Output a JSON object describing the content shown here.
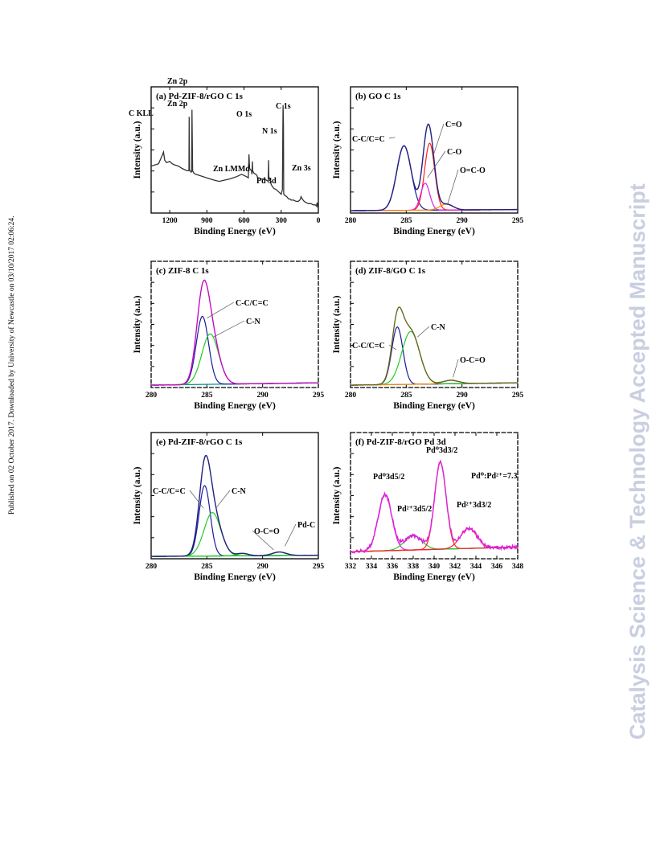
{
  "side_text": {
    "left": "Published on 02 October 2017. Downloaded by University of Newcastle on 03/10/2017 02:06:24.",
    "right": "Catalysis Science & Technology Accepted Manuscript"
  },
  "colors": {
    "axis": "#000000",
    "envelope_pink": "#ff00ff",
    "fit_blue": "#1a1aa0",
    "fit_green": "#22cc22",
    "fit_red": "#ff2020",
    "fit_magenta": "#dd22dd",
    "fit_orange": "#ff8800",
    "baseline": "#009090",
    "raw_dark": "#333333",
    "olive": "#808020",
    "watermark": "#c9cfe0"
  },
  "chart_data": [
    {
      "id": "a",
      "type": "line",
      "title": "(a) Pd-ZIF-8/rGO C 1s",
      "xlabel": "Binding Energy (eV)",
      "ylabel": "Intensity (a.u.)",
      "xlim": [
        1350,
        0
      ],
      "ylim": [
        0,
        100
      ],
      "reversed_x": true,
      "xticks": [
        1200,
        900,
        600,
        300,
        0
      ],
      "series": [
        {
          "color": "raw_dark",
          "x": [
            1350,
            1290,
            1265,
            1250,
            1240,
            1225,
            1200,
            1180,
            1160,
            1130,
            1100,
            1080,
            1060,
            1045,
            1043,
            1040,
            1030,
            1022,
            1020,
            1015,
            1005,
            990,
            960,
            930,
            900,
            870,
            840,
            800,
            760,
            720,
            690,
            660,
            640,
            620,
            580,
            565,
            560,
            555,
            540,
            536,
            532,
            530,
            520,
            505,
            495,
            490,
            480,
            460,
            435,
            420,
            405,
            402,
            400,
            390,
            380,
            360,
            340,
            320,
            300,
            295,
            290,
            287,
            285,
            282,
            280,
            270,
            255,
            240,
            230,
            220,
            200,
            180,
            160,
            150,
            145,
            140,
            130,
            115,
            100,
            80,
            60,
            40,
            25,
            15,
            10,
            5,
            0
          ],
          "y": [
            40,
            42,
            48,
            52,
            45,
            43,
            44,
            42,
            41,
            40,
            38,
            37,
            36,
            36,
            82,
            37,
            35,
            35,
            88,
            36,
            34,
            33,
            32,
            31,
            30,
            29,
            28,
            27,
            28,
            29,
            30,
            31,
            32,
            33,
            31,
            30,
            50,
            38,
            36,
            33,
            44,
            36,
            34,
            33,
            32,
            30,
            30,
            29,
            29,
            28,
            27,
            45,
            31,
            28,
            24,
            21,
            20,
            18,
            16,
            18,
            20,
            70,
            92,
            75,
            16,
            15,
            14,
            12,
            12,
            11,
            11,
            10,
            10,
            11,
            12,
            14,
            12,
            10,
            9,
            8,
            8,
            7,
            7,
            6,
            9,
            5,
            5
          ]
        }
      ],
      "annotations": [
        "C KLL",
        "Zn 2p",
        "Zn 2p",
        "O 1s",
        "N 1s",
        "C 1s",
        "Zn LMMd",
        "Pd 3d",
        "Zn 3s"
      ]
    },
    {
      "id": "b",
      "type": "line",
      "title": "(b) GO C 1s",
      "xlabel": "Binding Energy (eV)",
      "ylabel": "Intensity (a.u.)",
      "xlim": [
        280,
        295
      ],
      "ylim": [
        0,
        100
      ],
      "xticks": [
        280,
        285,
        290,
        295
      ],
      "peaks": [
        {
          "label": "C-C/C=C",
          "center": 284.8,
          "height": 55,
          "sigma": 0.65,
          "color": "fit_blue"
        },
        {
          "label": "C=O",
          "center": 287.1,
          "height": 57,
          "sigma": 0.45,
          "color": "fit_red"
        },
        {
          "label": "C-O",
          "center": 286.7,
          "height": 23,
          "sigma": 0.4,
          "color": "fit_magenta"
        },
        {
          "label": "O=C-O",
          "center": 288.6,
          "height": 5,
          "sigma": 0.6,
          "color": "fit_orange"
        }
      ],
      "baseline": [
        2,
        3
      ],
      "envelope_color": "fit_blue",
      "annotations": [
        "C-C/C=C",
        "C=O",
        "C-O",
        "O=C-O"
      ]
    },
    {
      "id": "c",
      "type": "line",
      "title": "(c) ZIF-8 C 1s",
      "xlabel": "Binding Energy (eV)",
      "ylabel": "Intensity (a.u.)",
      "xlim": [
        280,
        295
      ],
      "ylim": [
        0,
        100
      ],
      "xticks": [
        280,
        285,
        290,
        295
      ],
      "peaks": [
        {
          "label": "C-C/C=C",
          "center": 284.6,
          "height": 58,
          "sigma": 0.55,
          "color": "fit_blue"
        },
        {
          "label": "C-N",
          "center": 285.3,
          "height": 43,
          "sigma": 0.75,
          "color": "fit_green"
        }
      ],
      "baseline": [
        2,
        4
      ],
      "envelope_color": "envelope_pink",
      "annotations": [
        "C-C/C=C",
        "C-N"
      ]
    },
    {
      "id": "d",
      "type": "line",
      "title": "(d) ZIF-8/GO C 1s",
      "xlabel": "Binding Energy (eV)",
      "ylabel": "Intensity (a.u.)",
      "xlim": [
        280,
        295
      ],
      "ylim": [
        0,
        100
      ],
      "xticks": [
        280,
        285,
        290,
        295
      ],
      "peaks": [
        {
          "label": "C-C/C=C",
          "center": 284.2,
          "height": 49,
          "sigma": 0.5,
          "color": "fit_blue"
        },
        {
          "label": "C-N",
          "center": 285.4,
          "height": 45,
          "sigma": 0.8,
          "color": "fit_green"
        },
        {
          "label": "O-C=O",
          "center": 289.0,
          "height": 3,
          "sigma": 0.7,
          "color": "fit_orange"
        }
      ],
      "baseline": [
        2,
        4
      ],
      "envelope_color": "olive",
      "annotations": [
        "C-C/C=C",
        "C-N",
        "O-C=O"
      ]
    },
    {
      "id": "e",
      "type": "line",
      "title": "(e) Pd-ZIF-8/rGO C 1s",
      "xlabel": "Binding Energy (eV)",
      "ylabel": "Intensity (a.u.)",
      "xlim": [
        280,
        295
      ],
      "ylim": [
        0,
        100
      ],
      "xticks": [
        280,
        285,
        290,
        295
      ],
      "peaks": [
        {
          "label": "C-C/C=C",
          "center": 284.8,
          "height": 60,
          "sigma": 0.5,
          "color": "fit_blue"
        },
        {
          "label": "C-N",
          "center": 285.5,
          "height": 37,
          "sigma": 0.75,
          "color": "fit_green"
        },
        {
          "label": "O-C=O",
          "center": 288.2,
          "height": 2,
          "sigma": 0.5,
          "color": "fit_green"
        },
        {
          "label": "Pd-C",
          "center": 291.5,
          "height": 3,
          "sigma": 0.6,
          "color": "fit_green"
        }
      ],
      "baseline": [
        2,
        3
      ],
      "envelope_color": "fit_blue",
      "annotations": [
        "C-C/C=C",
        "C-N",
        "O-C=O",
        "Pd-C"
      ]
    },
    {
      "id": "f",
      "type": "line",
      "title": "(f) Pd-ZIF-8/rGO Pd 3d",
      "xlabel": "Binding Energy (eV)",
      "ylabel": "Intensity (a.u.)",
      "xlim": [
        332,
        348
      ],
      "ylim": [
        0,
        100
      ],
      "xticks": [
        332,
        334,
        336,
        338,
        340,
        342,
        344,
        346,
        348
      ],
      "peaks": [
        {
          "label": "Pd⁰3d5/2",
          "center": 335.3,
          "height": 48,
          "sigma": 0.65,
          "color": "fit_magenta"
        },
        {
          "label": "Pd²⁺3d5/2",
          "center": 338.0,
          "height": 12,
          "sigma": 0.85,
          "color": "fit_green"
        },
        {
          "label": "Pd⁰3d3/2",
          "center": 340.6,
          "height": 74,
          "sigma": 0.55,
          "color": "fit_red"
        },
        {
          "label": "Pd²⁺3d3/2",
          "center": 343.3,
          "height": 17,
          "sigma": 0.8,
          "color": "fit_red"
        }
      ],
      "baseline": [
        6,
        10
      ],
      "envelope_color": "fit_magenta",
      "noise": true,
      "annotations": [
        "Pd⁰3d5/2",
        "Pd²⁺3d5/2",
        "Pd⁰3d3/2",
        "Pd⁰:Pd²⁺=7.3",
        "Pd²⁺3d3/2"
      ]
    }
  ]
}
